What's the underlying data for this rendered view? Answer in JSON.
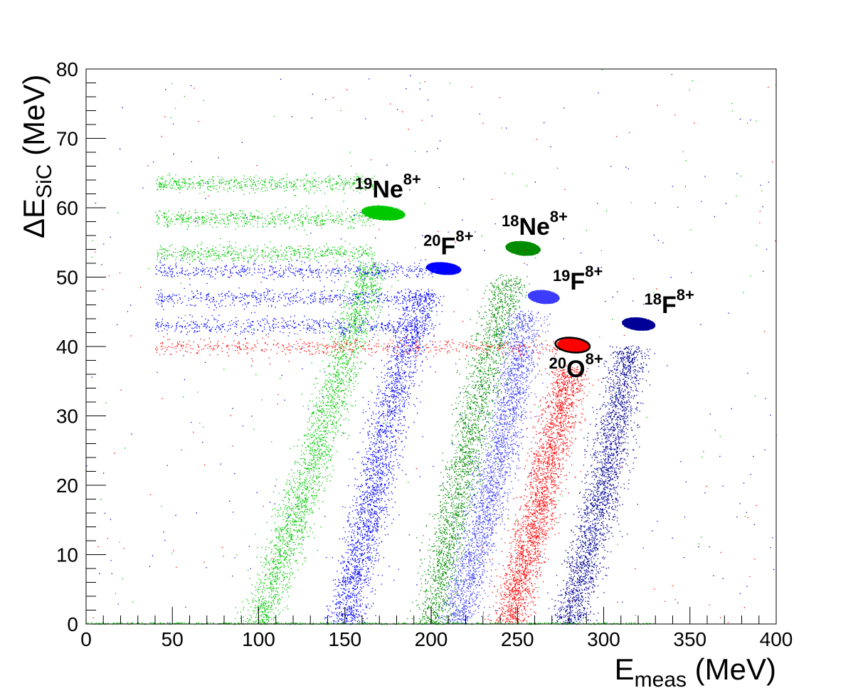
{
  "chart_data": {
    "type": "scatter",
    "title": "",
    "xlabel": {
      "main": "E",
      "sub": "meas",
      "unit": " (MeV)"
    },
    "ylabel": {
      "prefix": "ΔE",
      "sub": "SiC",
      "unit": " (MeV)"
    },
    "xlim": [
      0,
      400
    ],
    "ylim": [
      0,
      80
    ],
    "xticks": [
      0,
      50,
      100,
      150,
      200,
      250,
      300,
      350,
      400
    ],
    "yticks": [
      0,
      10,
      20,
      30,
      40,
      50,
      60,
      70,
      80
    ],
    "grid": false,
    "legend": "none",
    "colors": {
      "green": "#00c800",
      "darkgreen": "#008c00",
      "blue": "#0000ff",
      "lightblue": "#3c3cff",
      "navy": "#000096",
      "red": "#ff0000"
    },
    "series": [
      {
        "label": "19Ne8+",
        "color": "#00c800",
        "blob_center": [
          172,
          59.3
        ],
        "blob_size": [
          25,
          2.0
        ],
        "band_x": [
          [
            100,
            0
          ],
          [
            140,
            30
          ],
          [
            165,
            52
          ]
        ],
        "streaks_y": [
          63.5,
          58.5,
          53.5
        ]
      },
      {
        "label": "20F8+",
        "color": "#0000ff",
        "blob_center": [
          207,
          51.3
        ],
        "blob_size": [
          20,
          1.7
        ],
        "band_x": [
          [
            150,
            0
          ],
          [
            175,
            30
          ],
          [
            195,
            48
          ]
        ],
        "streaks_y": [
          51,
          47,
          43
        ]
      },
      {
        "label": "18Ne8+",
        "color": "#008c00",
        "blob_center": [
          253,
          54.2
        ],
        "blob_size": [
          20,
          2.0
        ],
        "band_x": [
          [
            200,
            0
          ],
          [
            225,
            30
          ],
          [
            245,
            50
          ]
        ]
      },
      {
        "label": "19F8+",
        "color": "#3c3cff",
        "blob_center": [
          265,
          47.2
        ],
        "blob_size": [
          18,
          1.9
        ],
        "band_x": [
          [
            215,
            0
          ],
          [
            245,
            30
          ],
          [
            255,
            45
          ]
        ]
      },
      {
        "label": "18F8+",
        "color": "#000096",
        "blob_center": [
          320,
          43.3
        ],
        "blob_size": [
          19,
          1.8
        ],
        "band_x": [
          [
            280,
            0
          ],
          [
            300,
            20
          ],
          [
            315,
            40
          ]
        ]
      },
      {
        "label": "20O8+",
        "color": "#ff0000",
        "blob_center": [
          282,
          40.2
        ],
        "blob_size": [
          18,
          2.0
        ],
        "band_x": [
          [
            245,
            0
          ],
          [
            265,
            20
          ],
          [
            280,
            37
          ]
        ],
        "streaks_y": [
          40
        ]
      }
    ],
    "annotations": [
      {
        "mass": "19",
        "element": "Ne",
        "charge": "8+",
        "x": 175,
        "y": 61.5
      },
      {
        "mass": "20",
        "element": "F",
        "charge": "8+",
        "x": 210,
        "y": 53.3
      },
      {
        "mass": "18",
        "element": "Ne",
        "charge": "8+",
        "x": 260,
        "y": 56.1
      },
      {
        "mass": "19",
        "element": "F",
        "charge": "8+",
        "x": 285,
        "y": 48.2
      },
      {
        "mass": "18",
        "element": "F",
        "charge": "8+",
        "x": 338,
        "y": 44.8
      },
      {
        "mass": "20",
        "element": "O",
        "charge": "8+",
        "x": 284,
        "y": 35.6
      }
    ],
    "gate": {
      "center": [
        282,
        40.2
      ],
      "size": [
        20,
        2.1
      ],
      "color": "#000000"
    }
  }
}
